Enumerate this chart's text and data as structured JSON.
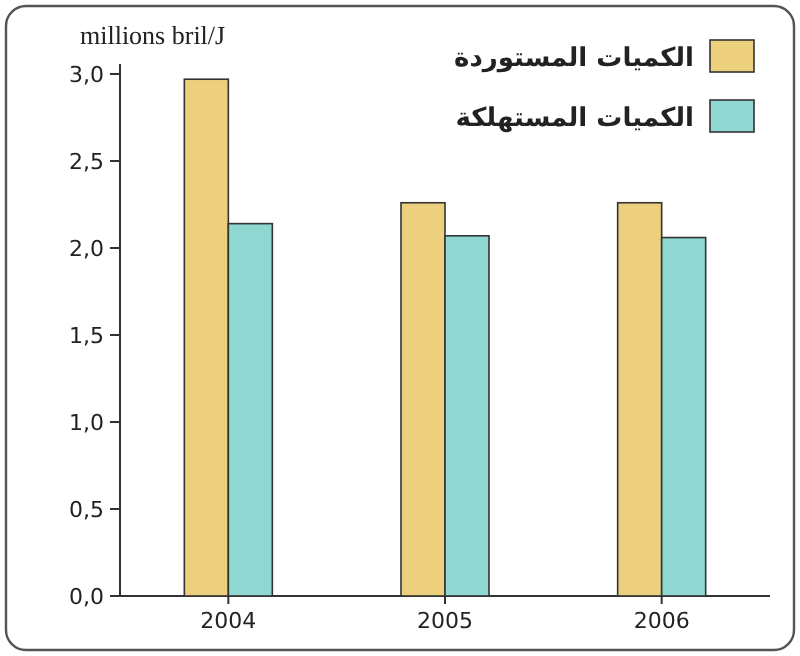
{
  "chart_data": {
    "type": "bar",
    "ylabel": "millions bril/J",
    "categories": [
      "2004",
      "2005",
      "2006"
    ],
    "series": [
      {
        "name": "الكميات المستوردة",
        "color": "#ecd07e",
        "values": [
          2.97,
          2.26,
          2.26
        ]
      },
      {
        "name": "الكميات المستهلكة",
        "color": "#8fd8d2",
        "values": [
          2.14,
          2.07,
          2.06
        ]
      }
    ],
    "ylim": [
      0,
      3
    ],
    "yticks": [
      {
        "value": 0,
        "label": "0,0"
      },
      {
        "value": 0.5,
        "label": "0,5"
      },
      {
        "value": 1,
        "label": "1,0"
      },
      {
        "value": 1.5,
        "label": "1,5"
      },
      {
        "value": 2,
        "label": "2,0"
      },
      {
        "value": 2.5,
        "label": "2,5"
      },
      {
        "value": 3,
        "label": "3,0"
      }
    ],
    "grid": false,
    "legend": "top right"
  }
}
